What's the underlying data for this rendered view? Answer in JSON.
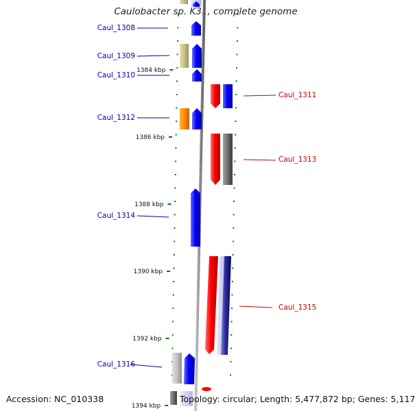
{
  "header": {
    "title": "Caulobacter sp. K31, complete genome"
  },
  "footer": {
    "accession": "Accession: NC_010338",
    "topology": "Topology: circular; Length: 5,477,872 bp; Genes: 5,117"
  },
  "scale_ticks": [
    "1384 kbp",
    "1386 kbp",
    "1388 kbp",
    "1390 kbp",
    "1392 kbp",
    "1394 kbp"
  ],
  "genes": [
    {
      "label": "Caul_1308",
      "strand": "forward"
    },
    {
      "label": "Caul_1309",
      "strand": "forward"
    },
    {
      "label": "Caul_1310",
      "strand": "forward"
    },
    {
      "label": "Caul_1311",
      "strand": "reverse"
    },
    {
      "label": "Caul_1312",
      "strand": "forward"
    },
    {
      "label": "Caul_1313",
      "strand": "reverse"
    },
    {
      "label": "Caul_1314",
      "strand": "forward"
    },
    {
      "label": "Caul_1315",
      "strand": "reverse"
    },
    {
      "label": "Caul_1316",
      "strand": "forward"
    }
  ],
  "colors": {
    "forward_strand": "#0000ff",
    "reverse_strand": "#ff0000",
    "backbone": "#8c8c8c",
    "tick_marks": "#007800",
    "left_label": "#0000b4",
    "right_label": "#c80000"
  }
}
